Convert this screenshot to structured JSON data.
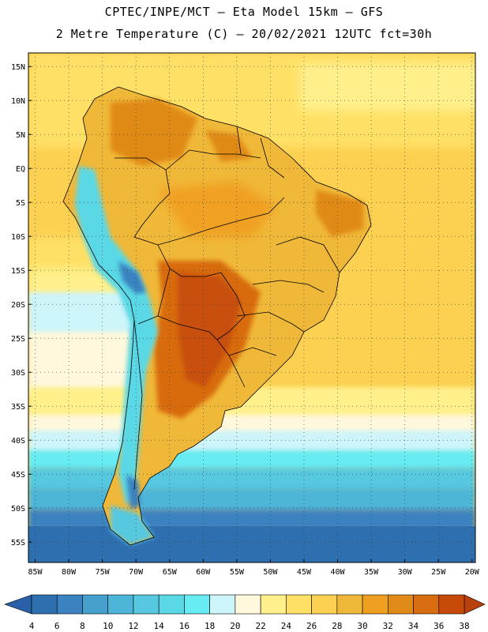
{
  "title_line1": "CPTEC/INPE/MCT –  Eta Model 15km – GFS",
  "title_line2": "2 Metre Temperature (C) – 20/02/2021 12UTC fct=30h",
  "map": {
    "lat_range": [
      -58,
      17
    ],
    "lon_range": [
      -86,
      -19.5
    ],
    "lat_labels": [
      "15N",
      "10N",
      "5N",
      "EQ",
      "5S",
      "10S",
      "15S",
      "20S",
      "25S",
      "30S",
      "35S",
      "40S",
      "45S",
      "50S",
      "55S"
    ],
    "lat_values": [
      15,
      10,
      5,
      0,
      -5,
      -10,
      -15,
      -20,
      -25,
      -30,
      -35,
      -40,
      -45,
      -50,
      -55
    ],
    "lon_labels": [
      "85W",
      "80W",
      "75W",
      "70W",
      "65W",
      "60W",
      "55W",
      "50W",
      "45W",
      "40W",
      "35W",
      "30W",
      "25W",
      "20W"
    ],
    "lon_values": [
      -85,
      -80,
      -75,
      -70,
      -65,
      -60,
      -55,
      -50,
      -45,
      -40,
      -35,
      -30,
      -25,
      -20
    ]
  },
  "colorbar": {
    "labels": [
      "4",
      "6",
      "8",
      "10",
      "12",
      "14",
      "16",
      "18",
      "20",
      "22",
      "24",
      "26",
      "28",
      "30",
      "32",
      "34",
      "36",
      "38"
    ],
    "colors": [
      "#2e6fb0",
      "#3a82c0",
      "#45a0cc",
      "#4db6d8",
      "#56c8e0",
      "#5ad8e6",
      "#66ecf2",
      "#cdf5fa",
      "#fff8dc",
      "#fff08c",
      "#ffe066",
      "#fcd050",
      "#f0b838",
      "#f0a020",
      "#e08a18",
      "#d86c10",
      "#c84a08"
    ],
    "low_color": "#2a60a8",
    "high_color": "#b8400a"
  },
  "land_features": {
    "andes_color": "#5ad8e6",
    "andes_peak_color": "#3a82c0",
    "hot_core_color": "#c8500c"
  }
}
